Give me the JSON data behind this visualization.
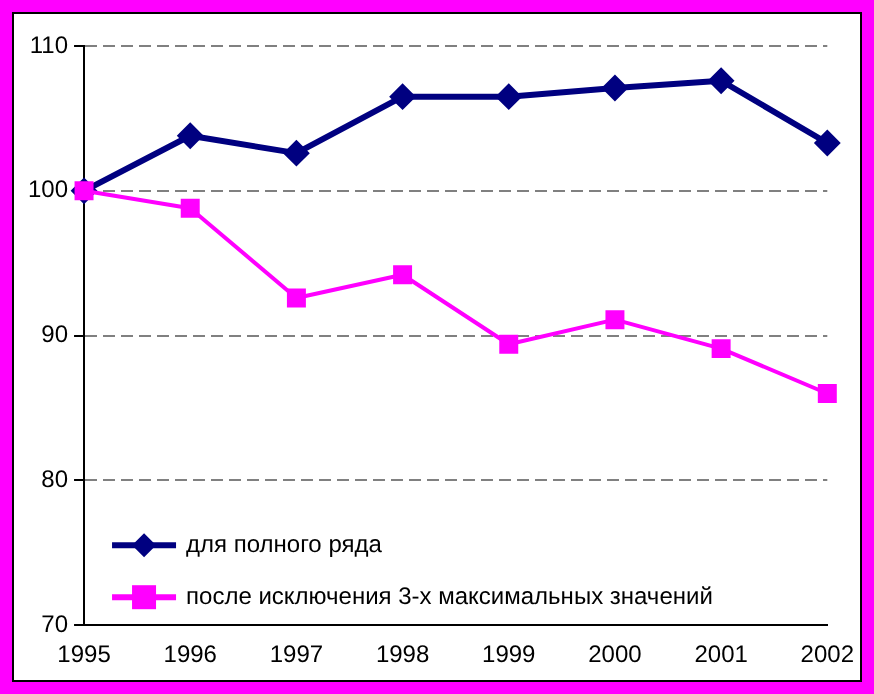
{
  "chart_data": {
    "type": "line",
    "x": [
      1995,
      1996,
      1997,
      1998,
      1999,
      2000,
      2001,
      2002
    ],
    "xlim": [
      1995,
      2002
    ],
    "xticks": [
      1995,
      1996,
      1997,
      1998,
      1999,
      2000,
      2001,
      2002
    ],
    "ylim": [
      70,
      110
    ],
    "yticks": [
      70,
      80,
      90,
      100,
      110
    ],
    "grid": "y",
    "legend": "bottom left",
    "series": [
      {
        "name": "для полного ряда",
        "color": "#000080",
        "marker": "diamond",
        "values": [
          100,
          103.8,
          102.6,
          106.5,
          106.5,
          107.1,
          107.6,
          103.3
        ]
      },
      {
        "name": "после исключения 3-х максимальных значений",
        "color": "#ff00ff",
        "marker": "square",
        "values": [
          100,
          98.8,
          92.6,
          94.2,
          89.4,
          91.1,
          89.1,
          86.0
        ]
      }
    ]
  }
}
